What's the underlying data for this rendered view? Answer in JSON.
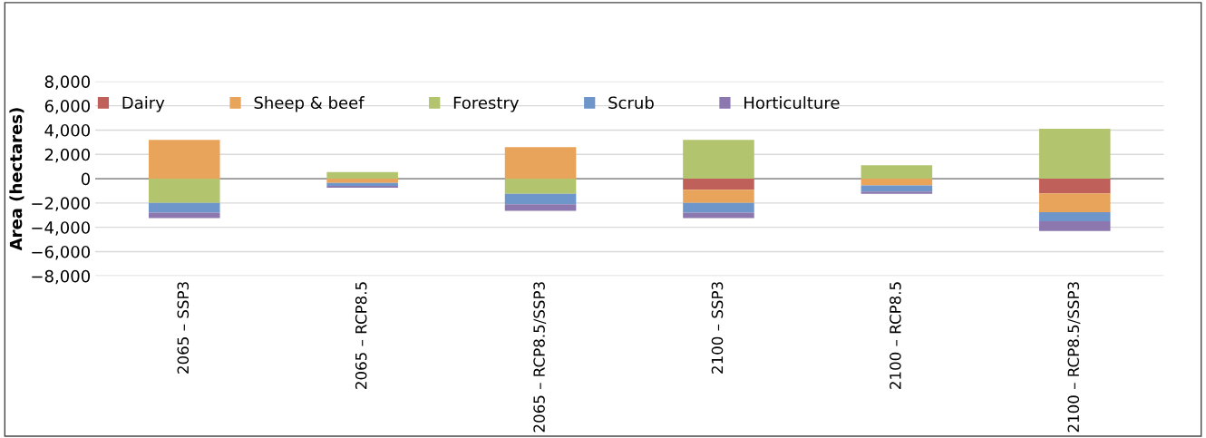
{
  "chart_data": {
    "type": "bar",
    "stacked": true,
    "ylabel": "Area (hectares)",
    "categories": [
      "2065 – SSP3",
      "2065 – RCP8.5",
      "2065 – RCP8.5/SSP3",
      "2100 – SSP3",
      "2100 – RCP8.5",
      "2100 – RCP8.5/SSP3"
    ],
    "series": [
      {
        "name": "Dairy",
        "color": "#c0605a",
        "values": [
          0,
          0,
          0,
          -900,
          0,
          -1200
        ]
      },
      {
        "name": "Sheep & beef",
        "color": "#e8a45a",
        "values": [
          3200,
          -350,
          2600,
          -1100,
          -550,
          -1550
        ]
      },
      {
        "name": "Forestry",
        "color": "#b2c46e",
        "values": [
          -2000,
          550,
          -1250,
          3200,
          1100,
          4100
        ]
      },
      {
        "name": "Scrub",
        "color": "#6f96cb",
        "values": [
          -800,
          -250,
          -850,
          -800,
          -500,
          -750
        ]
      },
      {
        "name": "Horticulture",
        "color": "#8c78ae",
        "values": [
          -450,
          -150,
          -550,
          -450,
          -200,
          -800
        ]
      }
    ],
    "ylim": [
      -8000,
      8000
    ],
    "yticks": [
      {
        "value": -8000,
        "label": "−8,000"
      },
      {
        "value": -6000,
        "label": "−6,000"
      },
      {
        "value": -4000,
        "label": "−4,000"
      },
      {
        "value": -2000,
        "label": "−2,000"
      },
      0,
      {
        "value": 2000,
        "label": "2,000"
      },
      {
        "value": 4000,
        "label": "4,000"
      },
      {
        "value": 6000,
        "label": "6,000"
      },
      {
        "value": 8000,
        "label": "8,000"
      }
    ],
    "grid": "y",
    "legend": "top"
  }
}
